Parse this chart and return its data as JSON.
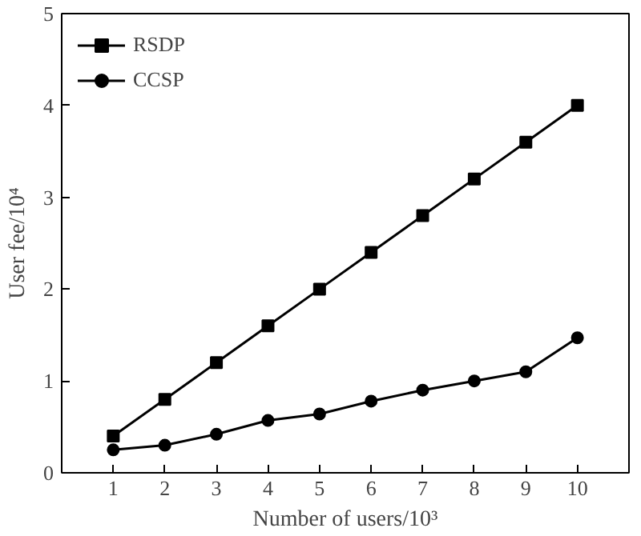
{
  "chart_data": {
    "type": "line",
    "xlabel": "Number of users/10³",
    "ylabel": "User fee/10⁴",
    "x": [
      1,
      2,
      3,
      4,
      5,
      6,
      7,
      8,
      9,
      10
    ],
    "xlim": [
      0,
      11
    ],
    "ylim": [
      0,
      5
    ],
    "xticks": [
      1,
      2,
      3,
      4,
      5,
      6,
      7,
      8,
      9,
      10
    ],
    "yticks": [
      0,
      1,
      2,
      3,
      4,
      5
    ],
    "series": [
      {
        "name": "RSDP",
        "color": "#000000",
        "marker": "square",
        "values": [
          0.4,
          0.8,
          1.2,
          1.6,
          2.0,
          2.4,
          2.8,
          3.2,
          3.6,
          4.0
        ]
      },
      {
        "name": "CCSP",
        "color": "#000000",
        "marker": "circle",
        "values": [
          0.25,
          0.3,
          0.42,
          0.57,
          0.64,
          0.78,
          0.9,
          1.0,
          1.1,
          1.47
        ]
      }
    ],
    "grid": false,
    "legend": "top left",
    "line_style": "solid"
  }
}
